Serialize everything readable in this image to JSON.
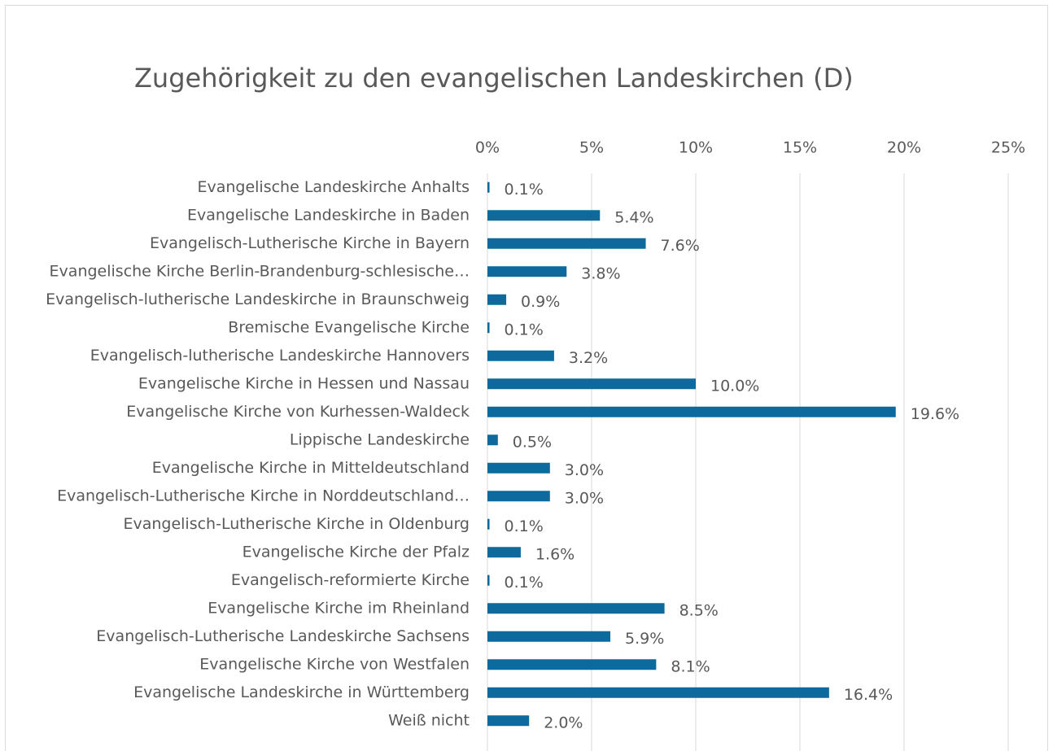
{
  "chart_data": {
    "type": "bar",
    "orientation": "horizontal",
    "title": "Zugehörigkeit zu den evangelischen Landeskirchen (D)",
    "categories": [
      "Evangelische Landeskirche Anhalts",
      "Evangelische Landeskirche in Baden",
      "Evangelisch-Lutherische Kirche in Bayern",
      "Evangelische Kirche Berlin-Brandenburg-schlesische…",
      "Evangelisch-lutherische Landeskirche in Braunschweig",
      "Bremische Evangelische Kirche",
      "Evangelisch-lutherische Landeskirche Hannovers",
      "Evangelische Kirche in Hessen und Nassau",
      "Evangelische Kirche von Kurhessen-Waldeck",
      "Lippische Landeskirche",
      "Evangelische Kirche in Mitteldeutschland",
      "Evangelisch-Lutherische Kirche in Norddeutschland…",
      "Evangelisch-Lutherische Kirche in Oldenburg",
      "Evangelische Kirche der Pfalz",
      "Evangelisch-reformierte Kirche",
      "Evangelische Kirche im Rheinland",
      "Evangelisch-Lutherische Landeskirche Sachsens",
      "Evangelische Kirche von Westfalen",
      "Evangelische Landeskirche in Württemberg",
      "Weiß nicht"
    ],
    "values": [
      0.1,
      5.4,
      7.6,
      3.8,
      0.9,
      0.1,
      3.2,
      10.0,
      19.6,
      0.5,
      3.0,
      3.0,
      0.1,
      1.6,
      0.1,
      8.5,
      5.9,
      8.1,
      16.4,
      2.0
    ],
    "value_labels": [
      "0.1%",
      "5.4%",
      "7.6%",
      "3.8%",
      "0.9%",
      "0.1%",
      "3.2%",
      "10.0%",
      "19.6%",
      "0.5%",
      "3.0%",
      "3.0%",
      "0.1%",
      "1.6%",
      "0.1%",
      "8.5%",
      "5.9%",
      "8.1%",
      "16.4%",
      "2.0%"
    ],
    "color": "#0e6a9c",
    "xlim": [
      0,
      25
    ],
    "xticks": [
      {
        "value": 0,
        "label": "0%"
      },
      {
        "value": 5,
        "label": "5%"
      },
      {
        "value": 10,
        "label": "10%"
      },
      {
        "value": 15,
        "label": "15%"
      },
      {
        "value": 20,
        "label": "20%"
      },
      {
        "value": 25,
        "label": "25%"
      }
    ],
    "grid": true
  }
}
